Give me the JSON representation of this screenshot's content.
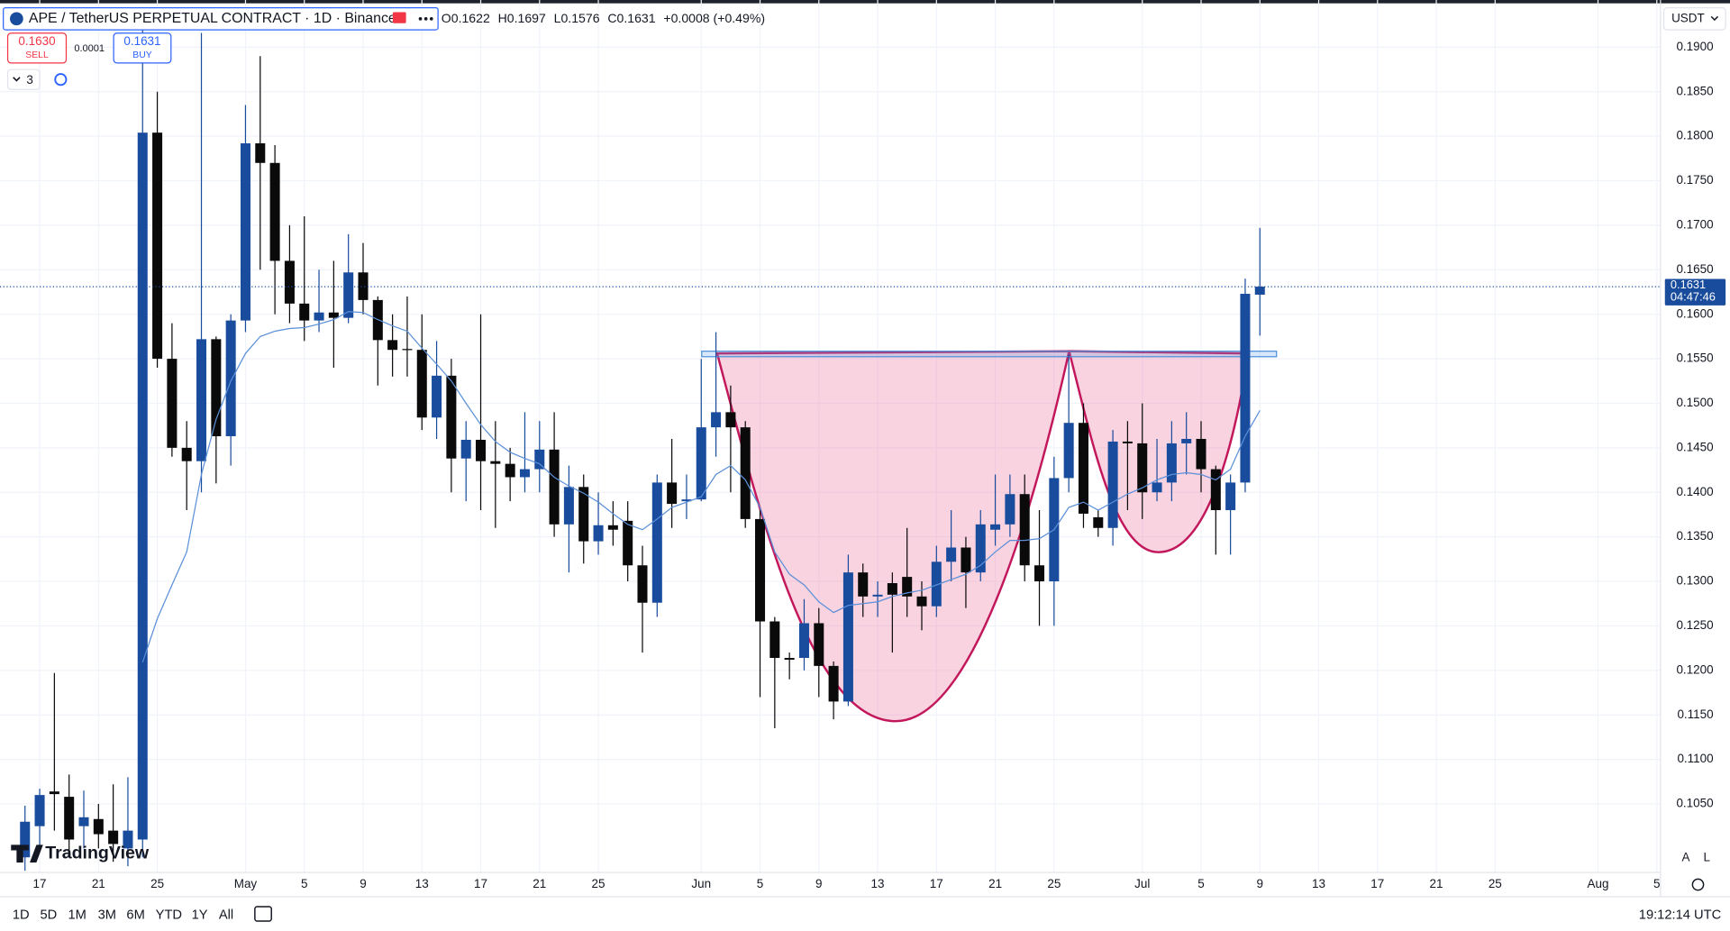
{
  "header": {
    "symbol": "APE / TetherUS PERPETUAL CONTRACT · 1D · Binance",
    "ohlc": [
      [
        "O",
        "0.1622"
      ],
      [
        "H",
        "0.1697"
      ],
      [
        "L",
        "0.1576"
      ],
      [
        "C",
        "0.1631"
      ]
    ],
    "change": "+0.0008 (+0.49%)",
    "sell_price": "0.1630",
    "sell": "SELL",
    "spread": "0.0001",
    "buy_price": "0.1631",
    "buy": "BUY",
    "indicators": "3",
    "currency": "USDT"
  },
  "chart_data": {
    "type": "candlestick",
    "x": [
      "Apr 16",
      "Apr 17",
      "Apr 18",
      "Apr 19",
      "Apr 20",
      "Apr 21",
      "Apr 22",
      "Apr 23",
      "Apr 24",
      "Apr 25",
      "Apr 26",
      "Apr 27",
      "Apr 28",
      "Apr 29",
      "Apr 30",
      "May 1",
      "May 2",
      "May 3",
      "May 4",
      "May 5",
      "May 6",
      "May 7",
      "May 8",
      "May 9",
      "May 10",
      "May 11",
      "May 12",
      "May 13",
      "May 14",
      "May 15",
      "May 16",
      "May 17",
      "May 18",
      "May 19",
      "May 20",
      "May 21",
      "May 22",
      "May 23",
      "May 24",
      "May 25",
      "May 26",
      "May 27",
      "May 28",
      "May 29",
      "May 30",
      "May 31",
      "Jun 1",
      "Jun 2",
      "Jun 3",
      "Jun 4",
      "Jun 5",
      "Jun 6",
      "Jun 7",
      "Jun 8",
      "Jun 9",
      "Jun 10",
      "Jun 11",
      "Jun 12",
      "Jun 13",
      "Jun 14",
      "Jun 15",
      "Jun 16",
      "Jun 17",
      "Jun 18",
      "Jun 19",
      "Jun 20",
      "Jun 21",
      "Jun 22",
      "Jun 23",
      "Jun 24",
      "Jun 25",
      "Jun 26",
      "Jun 27",
      "Jun 28",
      "Jun 29",
      "Jun 30",
      "Jul 1",
      "Jul 2",
      "Jul 3",
      "Jul 4",
      "Jul 5",
      "Jul 6",
      "Jul 7",
      "Jul 8",
      "Jul 9"
    ],
    "open": [
      0.099,
      0.1025,
      0.1064,
      0.1058,
      0.1025,
      0.1033,
      0.102,
      0.1,
      0.101,
      0.1804,
      0.155,
      0.145,
      0.1435,
      0.1572,
      0.1463,
      0.1593,
      0.1792,
      0.177,
      0.166,
      0.1612,
      0.1593,
      0.1602,
      0.1596,
      0.1647,
      0.1616,
      0.1571,
      0.1561,
      0.156,
      0.1484,
      0.1531,
      0.1438,
      0.1459,
      0.1435,
      0.1432,
      0.1417,
      0.1426,
      0.1448,
      0.1364,
      0.1406,
      0.1345,
      0.1363,
      0.1368,
      0.1318,
      0.1276,
      0.1411,
      0.139,
      0.1392,
      0.1473,
      0.149,
      0.1473,
      0.137,
      0.1255,
      0.1214,
      0.1214,
      0.1253,
      0.1205,
      0.1165,
      0.131,
      0.1283,
      0.1298,
      0.1305,
      0.1283,
      0.1272,
      0.1322,
      0.1338,
      0.131,
      0.1358,
      0.1364,
      0.1398,
      0.1318,
      0.13,
      0.1416,
      0.1478,
      0.1372,
      0.136,
      0.1457,
      0.1455,
      0.14,
      0.1411,
      0.1455,
      0.146,
      0.1426,
      0.138,
      0.1411,
      0.1622
    ],
    "high": [
      0.1048,
      0.1067,
      0.1197,
      0.1083,
      0.1065,
      0.105,
      0.1072,
      0.108,
      0.1945,
      0.185,
      0.159,
      0.148,
      0.1916,
      0.1575,
      0.16,
      0.1835,
      0.189,
      0.179,
      0.17,
      0.171,
      0.165,
      0.166,
      0.169,
      0.168,
      0.162,
      0.16,
      0.162,
      0.16,
      0.157,
      0.155,
      0.148,
      0.16,
      0.148,
      0.145,
      0.149,
      0.148,
      0.149,
      0.143,
      0.142,
      0.14,
      0.139,
      0.139,
      0.134,
      0.142,
      0.146,
      0.142,
      0.155,
      0.158,
      0.152,
      0.148,
      0.138,
      0.126,
      0.122,
      0.128,
      0.127,
      0.121,
      0.133,
      0.132,
      0.13,
      0.131,
      0.136,
      0.13,
      0.134,
      0.138,
      0.135,
      0.138,
      0.142,
      0.142,
      0.142,
      0.138,
      0.144,
      0.1555,
      0.15,
      0.138,
      0.147,
      0.148,
      0.15,
      0.146,
      0.148,
      0.149,
      0.148,
      0.143,
      0.142,
      0.164,
      0.1697
    ],
    "low": [
      0.0975,
      0.1,
      0.102,
      0.099,
      0.1,
      0.1,
      0.0985,
      0.098,
      0.099,
      0.154,
      0.144,
      0.138,
      0.14,
      0.141,
      0.143,
      0.158,
      0.165,
      0.16,
      0.159,
      0.157,
      0.158,
      0.154,
      0.159,
      0.16,
      0.152,
      0.153,
      0.153,
      0.147,
      0.146,
      0.14,
      0.139,
      0.138,
      0.136,
      0.139,
      0.14,
      0.14,
      0.135,
      0.131,
      0.132,
      0.133,
      0.134,
      0.13,
      0.122,
      0.126,
      0.136,
      0.137,
      0.139,
      0.144,
      0.14,
      0.136,
      0.117,
      0.1135,
      0.119,
      0.12,
      0.117,
      0.1145,
      0.116,
      0.126,
      0.126,
      0.122,
      0.126,
      0.1245,
      0.126,
      0.13,
      0.127,
      0.13,
      0.134,
      0.135,
      0.13,
      0.125,
      0.125,
      0.14,
      0.136,
      0.135,
      0.134,
      0.138,
      0.137,
      0.139,
      0.139,
      0.142,
      0.14,
      0.133,
      0.133,
      0.14,
      0.1576
    ],
    "close": [
      0.103,
      0.106,
      0.1061,
      0.101,
      0.1035,
      0.1016,
      0.1005,
      0.102,
      0.1804,
      0.155,
      0.145,
      0.1435,
      0.1572,
      0.1463,
      0.1593,
      0.1792,
      0.177,
      0.166,
      0.1612,
      0.1593,
      0.1602,
      0.1596,
      0.1647,
      0.1616,
      0.1571,
      0.156,
      0.156,
      0.1484,
      0.1531,
      0.1438,
      0.1459,
      0.1435,
      0.1432,
      0.1417,
      0.1426,
      0.1448,
      0.1364,
      0.1406,
      0.1345,
      0.1363,
      0.1358,
      0.1318,
      0.1276,
      0.1411,
      0.1387,
      0.1392,
      0.1473,
      0.149,
      0.1473,
      0.137,
      0.1255,
      0.1214,
      0.1212,
      0.1253,
      0.1205,
      0.1165,
      0.131,
      0.1283,
      0.1285,
      0.1285,
      0.1283,
      0.1272,
      0.1322,
      0.1338,
      0.131,
      0.1364,
      0.1364,
      0.1398,
      0.1318,
      0.13,
      0.1416,
      0.1478,
      0.1376,
      0.136,
      0.1457,
      0.1455,
      0.14,
      0.1411,
      0.1455,
      0.146,
      0.1426,
      0.138,
      0.1411,
      0.1623,
      0.1631
    ],
    "ma": [
      null,
      null,
      null,
      null,
      null,
      null,
      null,
      null,
      0.1209,
      0.1258,
      0.1296,
      0.1333,
      0.142,
      0.1482,
      0.1525,
      0.1556,
      0.1575,
      0.1581,
      0.1584,
      0.1585,
      0.1589,
      0.1594,
      0.1603,
      0.1602,
      0.1594,
      0.1587,
      0.1581,
      0.1562,
      0.1544,
      0.1525,
      0.15,
      0.1476,
      0.1457,
      0.1445,
      0.1438,
      0.1432,
      0.1417,
      0.1407,
      0.1399,
      0.1389,
      0.1376,
      0.1364,
      0.1358,
      0.137,
      0.1383,
      0.1389,
      0.1395,
      0.142,
      0.143,
      0.1414,
      0.1383,
      0.1333,
      0.1308,
      0.1296,
      0.1277,
      0.1265,
      0.1273,
      0.1275,
      0.1277,
      0.1283,
      0.1287,
      0.129,
      0.1296,
      0.1302,
      0.1308,
      0.1318,
      0.1333,
      0.1346,
      0.1346,
      0.1348,
      0.1358,
      0.1383,
      0.1389,
      0.138,
      0.1389,
      0.1398,
      0.1405,
      0.1414,
      0.142,
      0.1422,
      0.142,
      0.1414,
      0.1426,
      0.1463,
      0.1492
    ],
    "up_color": "#1a4c9e",
    "down_color": "#0a0a0a",
    "ma_color": "#5a8fd8",
    "xlim": [
      "Apr 14",
      "Aug 6"
    ],
    "xticks": [
      {
        "value": "Apr 17",
        "label": "17"
      },
      {
        "value": "Apr 21",
        "label": "21"
      },
      {
        "value": "Apr 25",
        "label": "25"
      },
      {
        "value": "May 1",
        "label": "May"
      },
      {
        "value": "May 5",
        "label": "5"
      },
      {
        "value": "May 9",
        "label": "9"
      },
      {
        "value": "May 13",
        "label": "13"
      },
      {
        "value": "May 17",
        "label": "17"
      },
      {
        "value": "May 21",
        "label": "21"
      },
      {
        "value": "May 25",
        "label": "25"
      },
      {
        "value": "Jun 1",
        "label": "Jun"
      },
      {
        "value": "Jun 5",
        "label": "5"
      },
      {
        "value": "Jun 9",
        "label": "9"
      },
      {
        "value": "Jun 13",
        "label": "13"
      },
      {
        "value": "Jun 17",
        "label": "17"
      },
      {
        "value": "Jun 21",
        "label": "21"
      },
      {
        "value": "Jun 25",
        "label": "25"
      },
      {
        "value": "Jul 1",
        "label": "Jul"
      },
      {
        "value": "Jul 5",
        "label": "5"
      },
      {
        "value": "Jul 9",
        "label": "9"
      },
      {
        "value": "Jul 13",
        "label": "13"
      },
      {
        "value": "Jul 17",
        "label": "17"
      },
      {
        "value": "Jul 21",
        "label": "21"
      },
      {
        "value": "Jul 25",
        "label": "25"
      },
      {
        "value": "Aug 1",
        "label": "Aug"
      },
      {
        "value": "Aug 5",
        "label": "5"
      }
    ],
    "ylim": [
      0.0973,
      0.1953
    ],
    "yticks": [
      {
        "value": 0.105,
        "label": "0.1050"
      },
      {
        "value": 0.11,
        "label": "0.1100"
      },
      {
        "value": 0.115,
        "label": "0.1150"
      },
      {
        "value": 0.12,
        "label": "0.1200"
      },
      {
        "value": 0.125,
        "label": "0.1250"
      },
      {
        "value": 0.13,
        "label": "0.1300"
      },
      {
        "value": 0.135,
        "label": "0.1350"
      },
      {
        "value": 0.14,
        "label": "0.1400"
      },
      {
        "value": 0.145,
        "label": "0.1450"
      },
      {
        "value": 0.15,
        "label": "0.1500"
      },
      {
        "value": 0.155,
        "label": "0.1550"
      },
      {
        "value": 0.16,
        "label": "0.1600"
      },
      {
        "value": 0.165,
        "label": "0.1650"
      },
      {
        "value": 0.17,
        "label": "0.1700"
      },
      {
        "value": 0.175,
        "label": "0.1750"
      },
      {
        "value": 0.18,
        "label": "0.1800"
      },
      {
        "value": 0.185,
        "label": "0.1850"
      },
      {
        "value": 0.19,
        "label": "0.1900"
      }
    ],
    "grid": true,
    "last_price": {
      "value": 0.1631,
      "label": "0.1631"
    },
    "countdown": "04:47:46",
    "price_tag_color": "#1a4c9e"
  },
  "toolbar": {
    "ranges": [
      "1D",
      "5D",
      "1M",
      "3M",
      "6M",
      "YTD",
      "1Y",
      "All"
    ],
    "time": "19:12:14 UTC",
    "scale_buttons": [
      "A",
      "L"
    ],
    "watermark": "TradingView"
  }
}
